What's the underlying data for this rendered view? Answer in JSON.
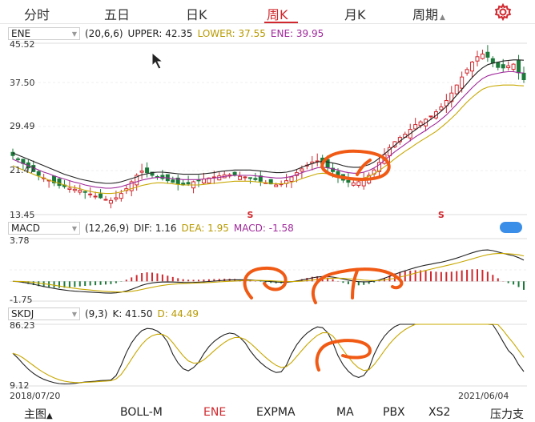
{
  "tabs": [
    "分时",
    "五日",
    "日K",
    "周K",
    "月K",
    "周期"
  ],
  "active_tab": "周K",
  "colors": {
    "rise": "#d0282e",
    "fall": "#1b7a3a",
    "line_black": "#222222",
    "line_purple": "#a0289b",
    "line_gold": "#c8a800",
    "annotation": "#f05a14",
    "accent": "#d0282e"
  },
  "ene": {
    "name": "ENE",
    "params": "(20,6,6)",
    "upper_label": "UPPER: 42.35",
    "lower_label": "LOWER: 37.55",
    "ene_label": "ENE: 39.95",
    "yticks": [
      "45.52",
      "37.50",
      "29.49",
      "21.47",
      "13.45"
    ],
    "signal": "S"
  },
  "macd": {
    "name": "MACD",
    "params": "(12,26,9)",
    "dif_label": "DIF: 1.16",
    "dea_label": "DEA: 1.95",
    "macd_label": "MACD: -1.58",
    "yticks": [
      "3.78",
      "-1.75"
    ]
  },
  "skdj": {
    "name": "SKDJ",
    "params": "(9,3)",
    "k_label": "K: 41.50",
    "d_label": "D: 44.49",
    "yticks": [
      "86.23",
      "9.12"
    ]
  },
  "dates": {
    "start": "2018/07/20",
    "end": "2021/06/04"
  },
  "bottom_tabs": [
    "主图",
    "BOLL-M",
    "ENE",
    "EXPMA",
    "MA",
    "PBX",
    "XS2",
    "压力支"
  ],
  "bottom_active": "ENE",
  "icons": {
    "settings": "gear-icon",
    "pointer": "cursor-icon"
  },
  "chart_data": {
    "type": "candlestick",
    "price_range": [
      13.45,
      45.52
    ],
    "price_series": {
      "close": [
        24.5,
        23.8,
        23.0,
        22.2,
        21.5,
        20.8,
        20.3,
        19.9,
        19.4,
        18.9,
        18.7,
        18.4,
        18.2,
        18.0,
        17.7,
        17.3,
        16.9,
        16.6,
        16.3,
        16.1,
        16.6,
        17.4,
        18.3,
        19.6,
        20.8,
        21.6,
        21.3,
        20.8,
        20.5,
        20.2,
        19.8,
        19.5,
        19.2,
        19.0,
        19.2,
        19.6,
        19.8,
        20.1,
        20.3,
        20.5,
        20.7,
        20.9,
        20.9,
        20.8,
        20.6,
        20.5,
        20.3,
        20.0,
        19.7,
        19.4,
        19.2,
        19.0,
        19.2,
        19.8,
        20.5,
        21.3,
        22.0,
        22.7,
        23.3,
        23.5,
        23.0,
        22.3,
        21.5,
        20.6,
        19.9,
        19.5,
        19.4,
        19.6,
        20.1,
        20.8,
        21.8,
        23.2,
        24.7,
        26.0,
        27.1,
        27.9,
        28.5,
        29.4,
        30.3,
        30.8,
        31.3,
        31.9,
        32.7,
        33.6,
        34.8,
        36.2,
        37.7,
        39.2,
        40.6,
        42.0,
        43.0,
        43.5,
        42.9,
        41.8,
        41.0,
        40.9,
        41.3,
        41.6,
        40.0,
        38.7
      ],
      "ene_upper": [
        25.0,
        24.6,
        24.2,
        23.8,
        23.4,
        23.0,
        22.6,
        22.2,
        21.8,
        21.4,
        21.0,
        20.7,
        20.4,
        20.1,
        19.9,
        19.7,
        19.5,
        19.4,
        19.3,
        19.3,
        19.4,
        19.6,
        19.9,
        20.2,
        20.5,
        20.9,
        21.1,
        21.3,
        21.4,
        21.4,
        21.3,
        21.2,
        21.1,
        21.0,
        21.0,
        21.0,
        21.0,
        21.1,
        21.2,
        21.3,
        21.5,
        21.6,
        21.7,
        21.8,
        21.8,
        21.8,
        21.8,
        21.7,
        21.6,
        21.5,
        21.4,
        21.3,
        21.3,
        21.4,
        21.6,
        21.9,
        22.3,
        22.7,
        23.0,
        23.3,
        23.4,
        23.3,
        23.1,
        22.9,
        22.6,
        22.4,
        22.3,
        22.3,
        22.5,
        22.8,
        23.3,
        24.0,
        24.8,
        25.6,
        26.4,
        27.2,
        27.9,
        28.6,
        29.3,
        30.0,
        30.6,
        31.3,
        32.0,
        32.8,
        33.7,
        34.7,
        35.8,
        36.9,
        38.0,
        39.1,
        40.1,
        40.9,
        41.5,
        41.8,
        42.0,
        42.2,
        42.3,
        42.4,
        42.4,
        42.35
      ],
      "ene_mid": [
        23.8,
        23.4,
        23.0,
        22.6,
        22.2,
        21.8,
        21.4,
        21.1,
        20.7,
        20.4,
        20.1,
        19.8,
        19.5,
        19.3,
        19.0,
        18.8,
        18.6,
        18.5,
        18.4,
        18.4,
        18.5,
        18.7,
        19.0,
        19.3,
        19.6,
        19.9,
        20.1,
        20.3,
        20.4,
        20.4,
        20.3,
        20.2,
        20.1,
        20.0,
        20.0,
        20.0,
        20.0,
        20.1,
        20.2,
        20.3,
        20.4,
        20.6,
        20.7,
        20.8,
        20.8,
        20.8,
        20.8,
        20.7,
        20.6,
        20.5,
        20.4,
        20.3,
        20.3,
        20.4,
        20.6,
        20.9,
        21.3,
        21.6,
        21.9,
        22.2,
        22.3,
        22.2,
        22.0,
        21.8,
        21.5,
        21.3,
        21.2,
        21.2,
        21.4,
        21.7,
        22.2,
        22.8,
        23.6,
        24.4,
        25.2,
        25.9,
        26.6,
        27.3,
        28.0,
        28.6,
        29.2,
        29.9,
        30.5,
        31.3,
        32.1,
        33.1,
        34.1,
        35.2,
        36.2,
        37.2,
        38.1,
        38.9,
        39.4,
        39.7,
        39.9,
        40.1,
        40.2,
        40.2,
        40.0,
        39.95
      ],
      "ene_lower": [
        22.6,
        22.2,
        21.8,
        21.4,
        21.0,
        20.6,
        20.3,
        19.9,
        19.6,
        19.3,
        19.0,
        18.7,
        18.5,
        18.3,
        18.0,
        17.8,
        17.6,
        17.5,
        17.4,
        17.4,
        17.5,
        17.7,
        18.0,
        18.3,
        18.6,
        18.9,
        19.1,
        19.3,
        19.4,
        19.4,
        19.3,
        19.2,
        19.1,
        19.0,
        19.0,
        19.0,
        19.0,
        19.1,
        19.2,
        19.3,
        19.4,
        19.5,
        19.6,
        19.7,
        19.7,
        19.7,
        19.7,
        19.6,
        19.5,
        19.4,
        19.3,
        19.2,
        19.2,
        19.3,
        19.5,
        19.8,
        20.2,
        20.5,
        20.8,
        21.1,
        21.2,
        21.1,
        20.9,
        20.7,
        20.4,
        20.2,
        20.1,
        20.1,
        20.3,
        20.6,
        21.1,
        21.7,
        22.4,
        23.1,
        23.9,
        24.6,
        25.3,
        25.9,
        26.6,
        27.2,
        27.8,
        28.4,
        29.0,
        29.8,
        30.6,
        31.5,
        32.4,
        33.5,
        34.5,
        35.4,
        36.2,
        36.9,
        37.3,
        37.5,
        37.6,
        37.7,
        37.7,
        37.7,
        37.6,
        37.55
      ]
    },
    "macd_range": [
      -1.75,
      3.78
    ],
    "skdj_range": [
      9.12,
      86.23
    ],
    "x_range": [
      "2018/07/20",
      "2021/06/04"
    ]
  }
}
